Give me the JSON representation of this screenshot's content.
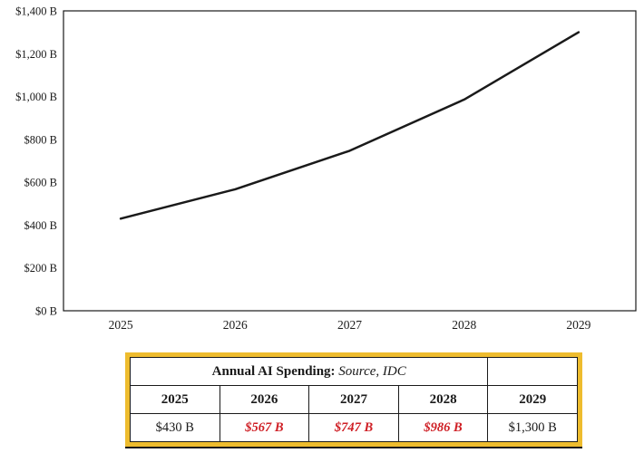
{
  "chart_data": {
    "type": "line",
    "title": "",
    "xlabel": "",
    "ylabel": "",
    "categories": [
      "2025",
      "2026",
      "2027",
      "2028",
      "2029"
    ],
    "series": [
      {
        "name": "Annual AI Spending",
        "values": [
          430,
          567,
          747,
          986,
          1300
        ]
      }
    ],
    "ylim": [
      0,
      1400
    ],
    "ytick_step": 200,
    "ytick_labels": [
      "$0 B",
      "$200 B",
      "$400 B",
      "$600 B",
      "$800 B",
      "$1,000 B",
      "$1,200 B",
      "$1,400 B"
    ],
    "grid": false,
    "legend": "none",
    "line_color": "#1a1a1a"
  },
  "table": {
    "title_bold": "Annual AI Spending:",
    "title_italic": " Source, IDC",
    "years": [
      "2025",
      "2026",
      "2027",
      "2028",
      "2029"
    ],
    "values": [
      "$430 B",
      "$567 B",
      "$747 B",
      "$986 B",
      "$1,300 B"
    ],
    "highlight_color": "#cf1f25",
    "frame_color": "#eebc2e"
  }
}
